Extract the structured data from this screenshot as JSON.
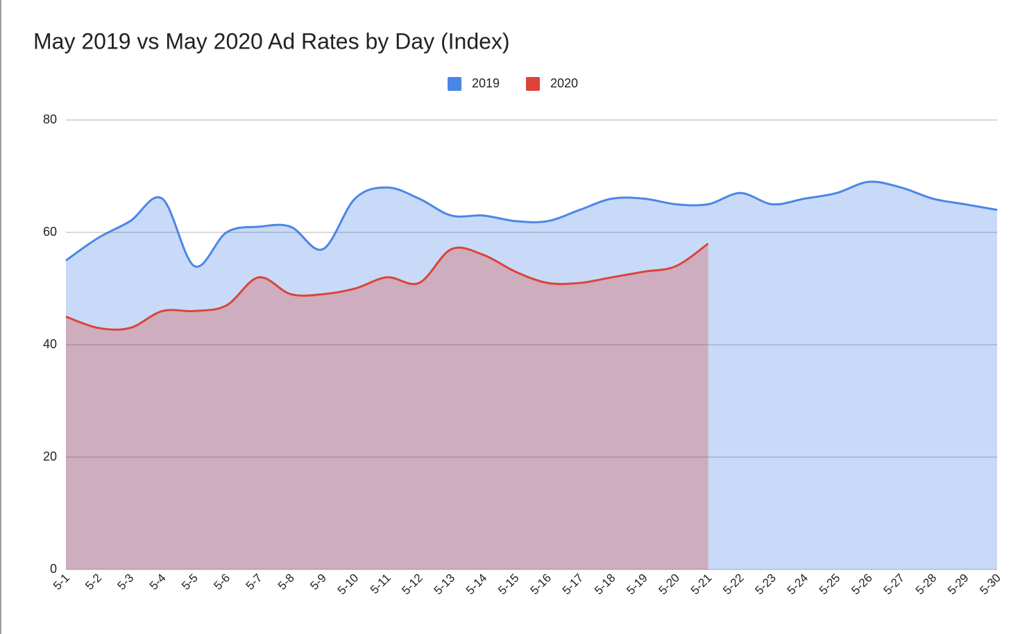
{
  "chart_data": {
    "type": "area",
    "title": "May 2019 vs May 2020 Ad Rates by Day (Index)",
    "categories": [
      "5-1",
      "5-2",
      "5-3",
      "5-4",
      "5-5",
      "5-6",
      "5-7",
      "5-8",
      "5-9",
      "5-10",
      "5-11",
      "5-12",
      "5-13",
      "5-14",
      "5-15",
      "5-16",
      "5-17",
      "5-18",
      "5-19",
      "5-20",
      "5-21",
      "5-22",
      "5-23",
      "5-24",
      "5-25",
      "5-26",
      "5-27",
      "5-28",
      "5-29",
      "5-30"
    ],
    "series": [
      {
        "name": "2019",
        "color": "#4a86e8",
        "values": [
          55,
          59,
          62,
          66,
          54,
          60,
          61,
          61,
          57,
          66,
          68,
          66,
          63,
          63,
          62,
          62,
          64,
          66,
          66,
          65,
          65,
          67,
          65,
          66,
          67,
          69,
          68,
          66,
          65,
          64
        ]
      },
      {
        "name": "2020",
        "color": "#db4437",
        "values": [
          45,
          43,
          43,
          46,
          46,
          47,
          52,
          49,
          49,
          50,
          52,
          51,
          57,
          56,
          53,
          51,
          51,
          52,
          53,
          54,
          58,
          null,
          null,
          null,
          null,
          null,
          null,
          null,
          null,
          null
        ]
      }
    ],
    "ylim": [
      0,
      80
    ],
    "yticks": [
      0,
      20,
      40,
      60,
      80
    ],
    "grid": true,
    "legend": "top"
  }
}
